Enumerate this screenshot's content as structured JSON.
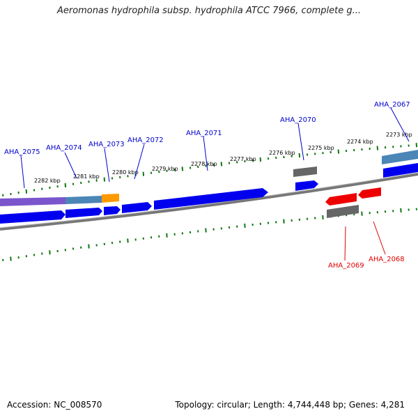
{
  "title": "Aeromonas hydrophila subsp. hydrophila ATCC 7966, complete g...",
  "footer": {
    "accession": "Accession: NC_008570",
    "summary": "Topology: circular; Length: 4,744,448 bp; Genes: 4,281"
  },
  "colors": {
    "forward_label": "#0000cc",
    "reverse_label": "#dd0000",
    "forward_cds": "#0000ee",
    "reverse_cds": "#ee0000",
    "rna": "#ff9900",
    "other_feature": "#666666",
    "purple_feature": "#7a55cc",
    "steelblue_feature": "#4682b4",
    "tick": "#117711",
    "backbone": "#777777"
  },
  "kbp_ticks": [
    "2282 kbp",
    "2281 kbp",
    "2280 kbp",
    "2279 kbp",
    "2278 kbp",
    "2277 kbp",
    "2276 kbp",
    "2275 kbp",
    "2274 kbp",
    "2273 kbp"
  ],
  "forward_genes": [
    "AHA_2075",
    "AHA_2074",
    "AHA_2073",
    "AHA_2072",
    "AHA_2071",
    "AHA_2070",
    "AHA_2067"
  ],
  "reverse_genes": [
    "AHA_2069",
    "AHA_2068"
  ]
}
